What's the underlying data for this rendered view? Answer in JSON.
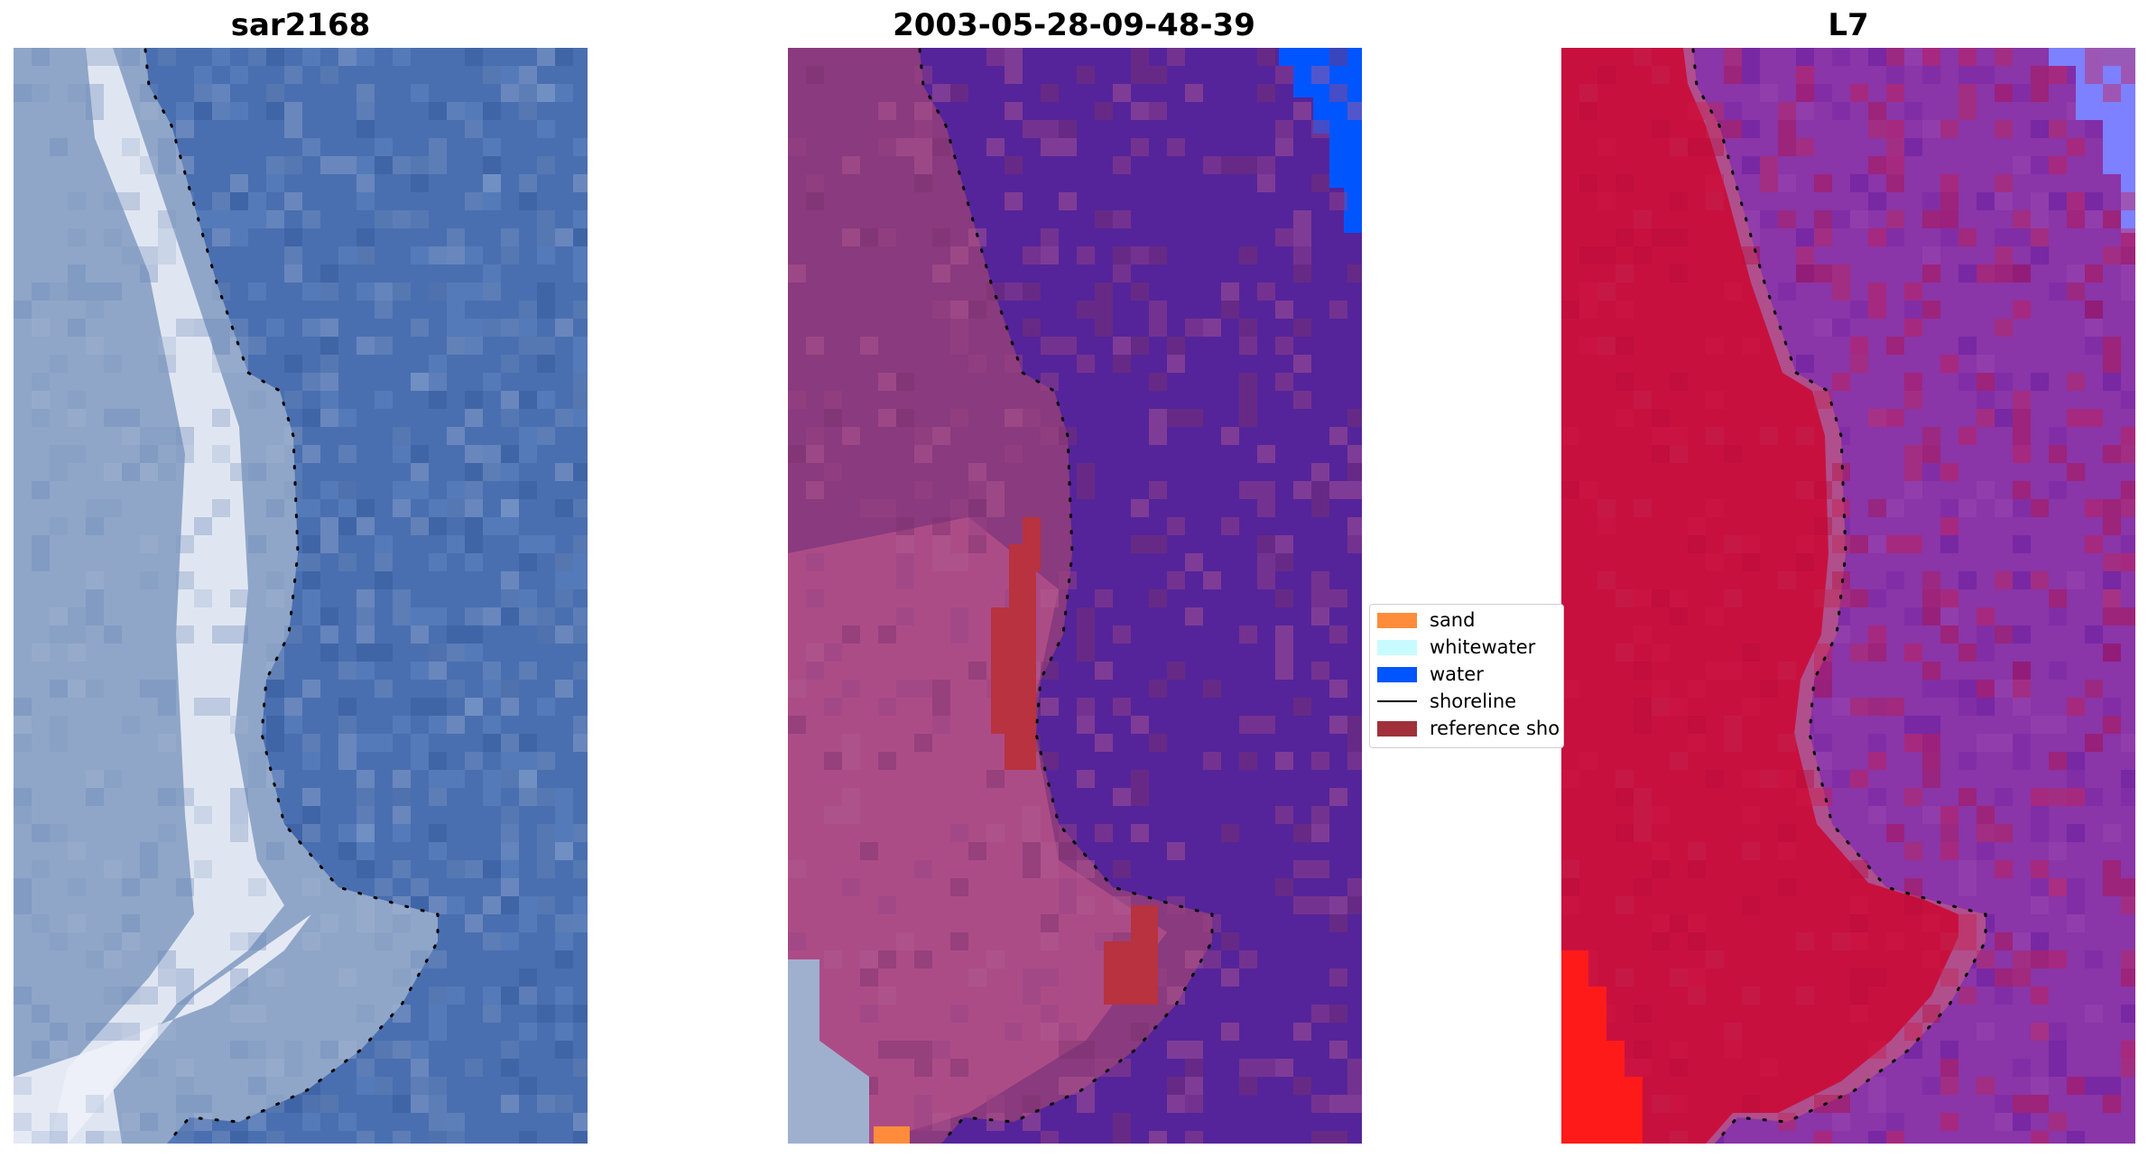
{
  "panels": [
    {
      "title": "sar2168",
      "kind": "rgb",
      "colors": {
        "water": "#4a6fb0",
        "land": "#8fa6c8",
        "bright": "#eef1f8",
        "pixel_light": "#5a7fbd",
        "pixel_dark": "#3d62a3"
      }
    },
    {
      "title": "2003-05-28-09-48-39",
      "kind": "classified",
      "colors": {
        "water": "#55249a",
        "land": "#8a3a7e",
        "land_light": "#b4518a",
        "ref_shore": "#b8323f",
        "open_water": "#0055ff",
        "sand": "#ff8c3a",
        "ghost": "#9fb0cf"
      }
    },
    {
      "title": "L7",
      "kind": "mndwi",
      "colors": {
        "water": "#8a35a8",
        "water_dark": "#6a1ea0",
        "land": "#c8103f",
        "edge": "#b04f8c",
        "light_blue": "#7d80ff",
        "bright_red": "#ff1a1a"
      }
    }
  ],
  "legend": {
    "items": [
      {
        "label": "sand",
        "type": "patch",
        "color": "#ff8c3a"
      },
      {
        "label": "whitewater",
        "type": "patch",
        "color": "#c8fbff"
      },
      {
        "label": "water",
        "type": "patch",
        "color": "#0055ff"
      },
      {
        "label": "shoreline",
        "type": "line",
        "color": "#000000"
      },
      {
        "label": "reference sho",
        "type": "patch",
        "color": "#a0303a"
      }
    ]
  },
  "shoreline_color": "#000000"
}
